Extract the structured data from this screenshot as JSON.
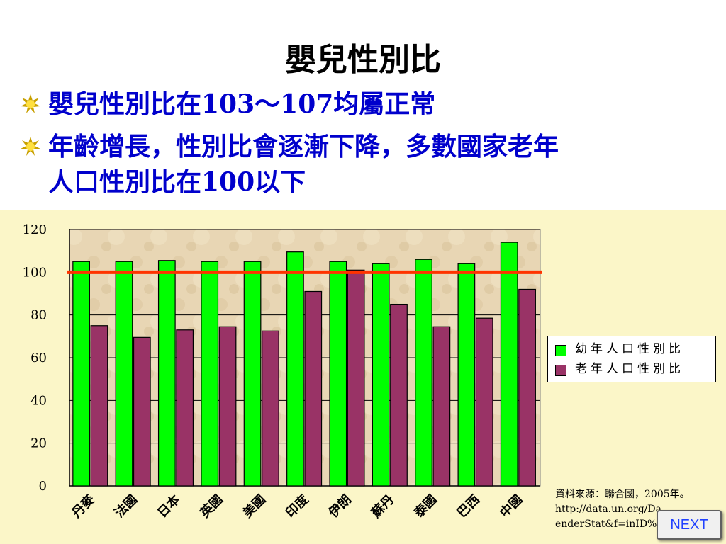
{
  "slide": {
    "title": "嬰兒性別比",
    "bullets": [
      {
        "line1": "嬰兒性別比在103～107均屬正常",
        "line2": ""
      },
      {
        "line1": "年齡增長，性別比會逐漸下降，多數國家老年",
        "line2": "人口性別比在100以下"
      }
    ]
  },
  "colors": {
    "title": "#000000",
    "bullet_text": "#0000cc",
    "panel_bg": "#fbf6c8",
    "plot_bg": "#e8d6b4",
    "series_young": "#00ff00",
    "series_old": "#993366",
    "reference_line": "#ff3300",
    "next_text": "#2040ff"
  },
  "chart_data": {
    "type": "bar",
    "title": "",
    "xlabel": "",
    "ylabel": "",
    "categories": [
      "丹麥",
      "法國",
      "日本",
      "英國",
      "美國",
      "印度",
      "伊朗",
      "蘇丹",
      "泰國",
      "巴西",
      "中國"
    ],
    "series": [
      {
        "name": "幼年人口性別比",
        "color": "#00ff00",
        "values": [
          105,
          105,
          105.5,
          105,
          105,
          109.5,
          105,
          104,
          106,
          104,
          114
        ]
      },
      {
        "name": "老年人口性別比",
        "color": "#993366",
        "values": [
          75,
          69.5,
          73,
          74.5,
          72.5,
          91,
          101,
          85,
          74.5,
          78.5,
          92
        ]
      }
    ],
    "ylim": [
      0,
      120
    ],
    "yticks": [
      "0",
      "20",
      "40",
      "60",
      "80",
      "100",
      "120"
    ],
    "reference_line": {
      "value": 100,
      "color": "#ff3300"
    },
    "grid": true,
    "legend": "right"
  },
  "source": {
    "lines": [
      "資料來源：聯合國，2005年。",
      "http://data.un.org/Da",
      "enderStat&f=inID%3"
    ]
  },
  "nav": {
    "next_label": "NEXT"
  }
}
